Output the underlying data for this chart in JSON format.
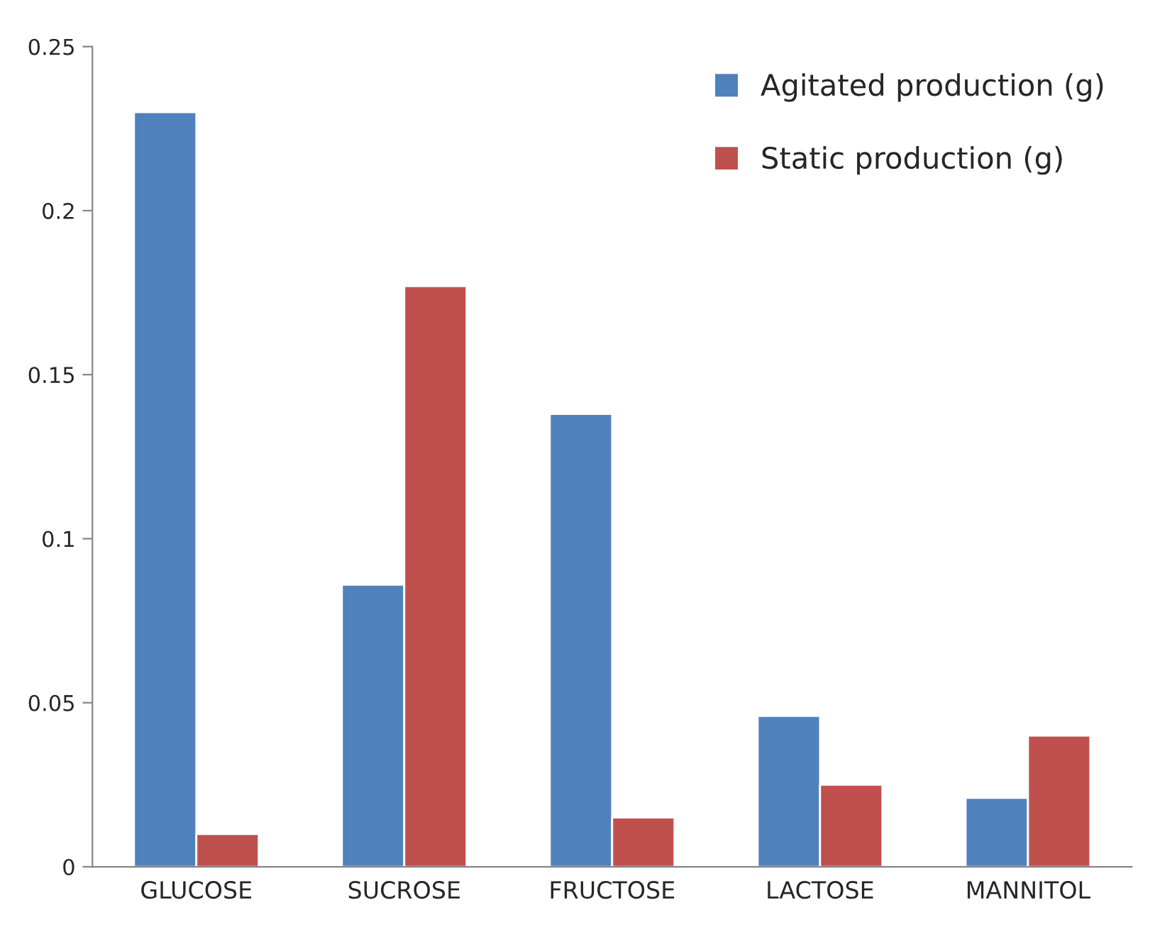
{
  "chart_data": {
    "type": "bar",
    "categories": [
      "GLUCOSE",
      "SUCROSE",
      "FRUCTOSE",
      "LACTOSE",
      "MANNITOL"
    ],
    "series": [
      {
        "name": "Agitated production (g)",
        "color": "#4f81bd",
        "values": [
          0.23,
          0.086,
          0.138,
          0.046,
          0.021
        ]
      },
      {
        "name": "Static production (g)",
        "color": "#c0504d",
        "values": [
          0.01,
          0.177,
          0.015,
          0.025,
          0.04
        ]
      }
    ],
    "ylim": [
      0,
      0.25
    ],
    "yticks": [
      0,
      {
        "value": 0.05,
        "label": "0.05"
      },
      {
        "value": 0.1,
        "label": "0.1"
      },
      {
        "value": 0.15,
        "label": "0.15"
      },
      {
        "value": 0.2,
        "label": "0.2"
      },
      {
        "value": 0.25,
        "label": "0.25"
      }
    ],
    "grid": false,
    "legend": "top right"
  }
}
